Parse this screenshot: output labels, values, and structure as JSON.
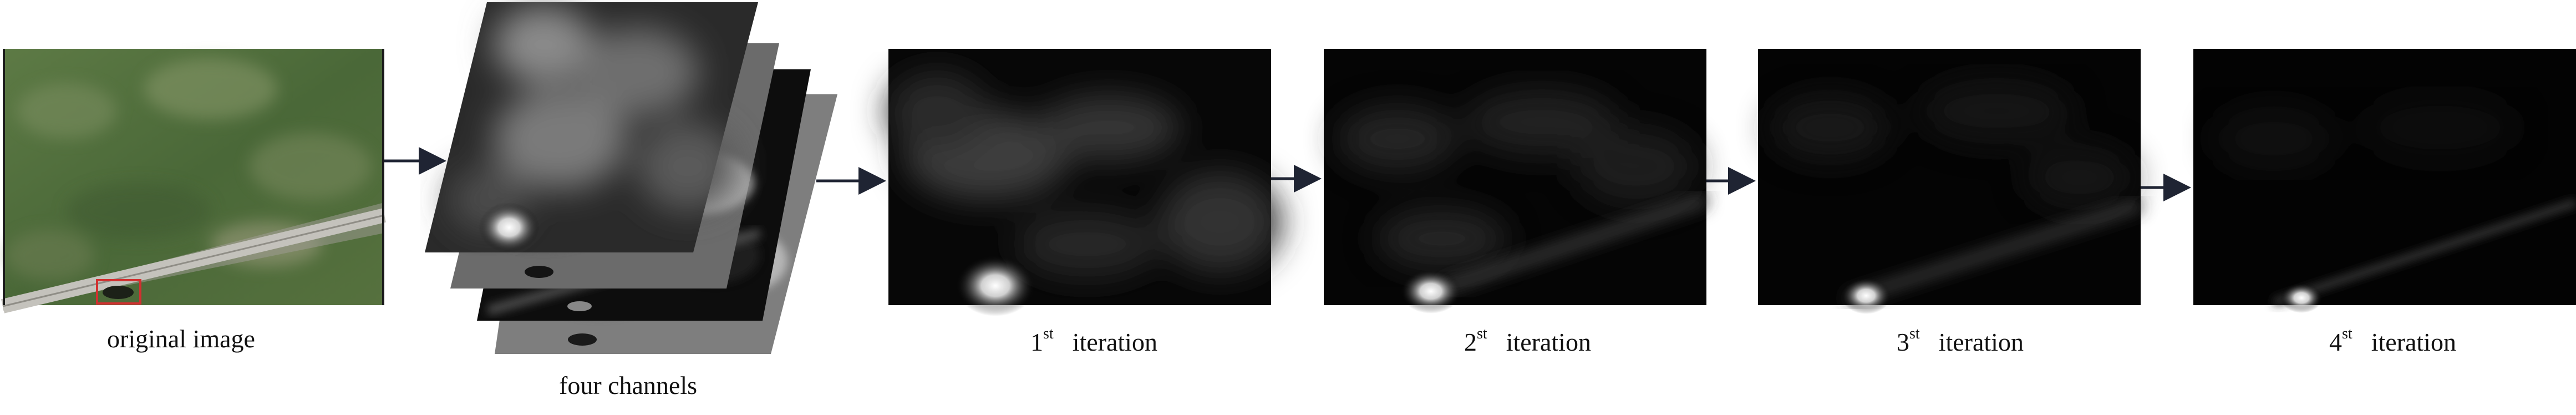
{
  "captions": {
    "original": "original image",
    "channels": "four channels"
  },
  "iterations": [
    {
      "num": "1",
      "suffix": "st",
      "word": "iteration"
    },
    {
      "num": "2",
      "suffix": "st",
      "word": "iteration"
    },
    {
      "num": "3",
      "suffix": "st",
      "word": "iteration"
    },
    {
      "num": "4",
      "suffix": "st",
      "word": "iteration"
    }
  ],
  "colors": {
    "arrow": "#1f2433",
    "highlight_box": "#d23030",
    "grass": "#4c6a3a",
    "road": "#b9b8b4"
  }
}
